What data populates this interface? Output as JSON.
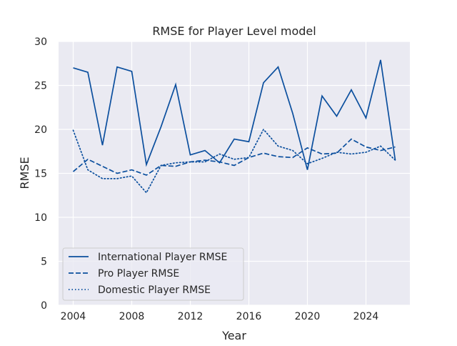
{
  "chart_data": {
    "type": "line",
    "title": "RMSE for Player Level model",
    "xlabel": "Year",
    "ylabel": "RMSE",
    "xlim": [
      2003.0,
      2027.0
    ],
    "ylim": [
      0,
      30
    ],
    "xticks": [
      "2004",
      "2008",
      "2012",
      "2016",
      "2020",
      "2024"
    ],
    "yticks": [
      "0",
      "5",
      "10",
      "15",
      "20",
      "25",
      "30"
    ],
    "grid": true,
    "legend_position": "lower-left",
    "color": "#0b4f9e",
    "x": [
      2004,
      2005,
      2006,
      2007,
      2008,
      2009,
      2010,
      2011,
      2012,
      2013,
      2014,
      2015,
      2016,
      2017,
      2018,
      2019,
      2020,
      2021,
      2022,
      2023,
      2024,
      2025,
      2026
    ],
    "series": [
      {
        "name": "International Player RMSE",
        "style": "solid",
        "values": [
          27.0,
          26.5,
          18.2,
          27.1,
          26.6,
          16.0,
          20.3,
          25.1,
          17.1,
          17.6,
          16.2,
          18.9,
          18.6,
          25.3,
          27.1,
          21.8,
          15.4,
          23.8,
          21.5,
          24.5,
          21.3,
          27.9,
          16.5
        ]
      },
      {
        "name": "Pro Player RMSE",
        "style": "dashed",
        "values": [
          15.2,
          16.6,
          15.8,
          15.0,
          15.4,
          14.8,
          15.9,
          15.8,
          16.3,
          16.5,
          16.3,
          15.9,
          16.8,
          17.3,
          16.9,
          16.8,
          17.9,
          17.2,
          17.3,
          18.9,
          18.0,
          17.6,
          18.0
        ]
      },
      {
        "name": "Domestic Player RMSE",
        "style": "dotted",
        "values": [
          19.9,
          15.4,
          14.4,
          14.4,
          14.7,
          12.8,
          15.9,
          16.2,
          16.3,
          16.3,
          17.2,
          16.6,
          16.8,
          20.0,
          18.1,
          17.6,
          16.1,
          16.7,
          17.4,
          17.2,
          17.4,
          18.1,
          16.5
        ]
      }
    ]
  }
}
